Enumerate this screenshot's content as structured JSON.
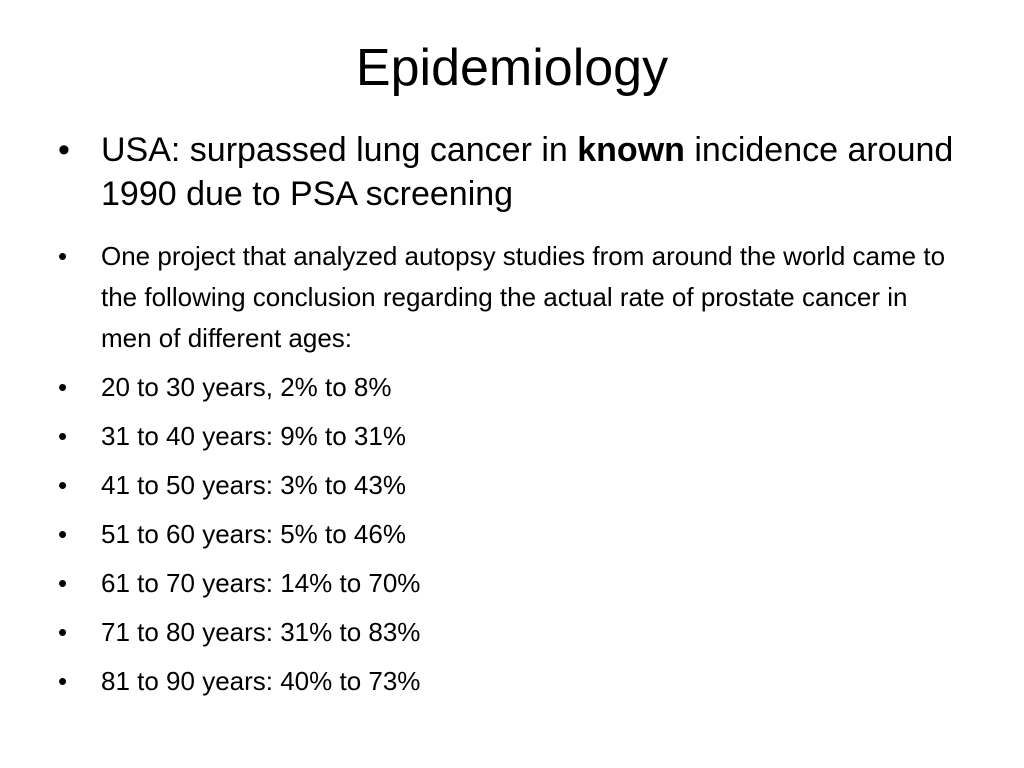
{
  "slide": {
    "title": "Epidemiology",
    "bullet_glyph": "•",
    "first_bullet": {
      "before": "USA: surpassed lung cancer in ",
      "bold": "known",
      "after": " incidence around 1990 due to PSA screening"
    },
    "second_bullet": "One project that analyzed autopsy studies from around the world came to the following conclusion regarding the actual rate of prostate cancer in men of different ages:",
    "age_rates": [
      "20 to 30 years, 2% to 8%",
      "31 to 40 years: 9% to 31%",
      "41 to 50 years: 3% to 43%",
      "51 to 60 years: 5% to 46%",
      "61 to 70 years: 14% to 70%",
      "71 to 80 years: 31% to 83%",
      "81 to 90 years: 40% to 73%"
    ]
  }
}
